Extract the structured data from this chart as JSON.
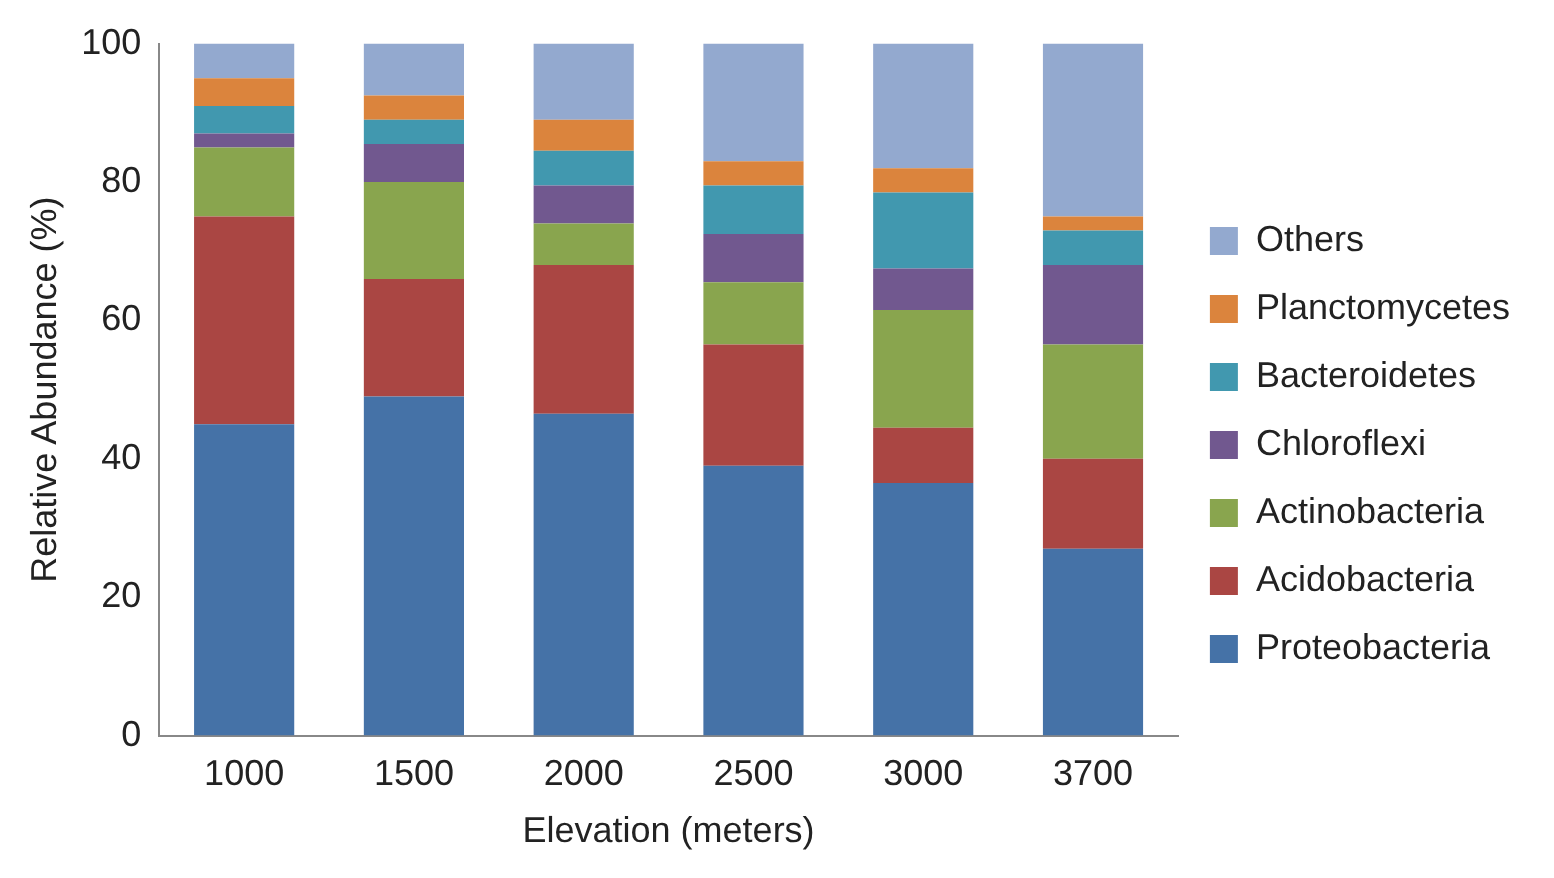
{
  "chart_data": {
    "type": "bar",
    "stacked": true,
    "xlabel": "Elevation (meters)",
    "ylabel": "Relative Abundance (%)",
    "categories": [
      "1000",
      "1500",
      "2000",
      "2500",
      "3000",
      "3700"
    ],
    "ylim": [
      0,
      100
    ],
    "yticks": [
      0,
      20,
      40,
      60,
      80,
      100
    ],
    "grid": false,
    "legend": "right",
    "series": [
      {
        "name": "Proteobacteria",
        "color": "#4572a7",
        "values": [
          45,
          49,
          46.5,
          39,
          36.5,
          27
        ]
      },
      {
        "name": "Acidobacteria",
        "color": "#aa4643",
        "values": [
          30,
          17,
          21.5,
          17.5,
          8,
          13
        ]
      },
      {
        "name": "Actinobacteria",
        "color": "#89a54e",
        "values": [
          10,
          14,
          6,
          9,
          17,
          16.5
        ]
      },
      {
        "name": "Chloroflexi",
        "color": "#71588f",
        "values": [
          2,
          5.5,
          5.5,
          7,
          6,
          11.5
        ]
      },
      {
        "name": "Bacteroidetes",
        "color": "#4198af",
        "values": [
          4,
          3.5,
          5,
          7,
          11,
          5
        ]
      },
      {
        "name": "Planctomycetes",
        "color": "#db843d",
        "values": [
          4,
          3.5,
          4.5,
          3.5,
          3.5,
          2
        ]
      },
      {
        "name": "Others",
        "color": "#93a9cf",
        "values": [
          5,
          7.5,
          11,
          17,
          18,
          25
        ]
      }
    ]
  }
}
